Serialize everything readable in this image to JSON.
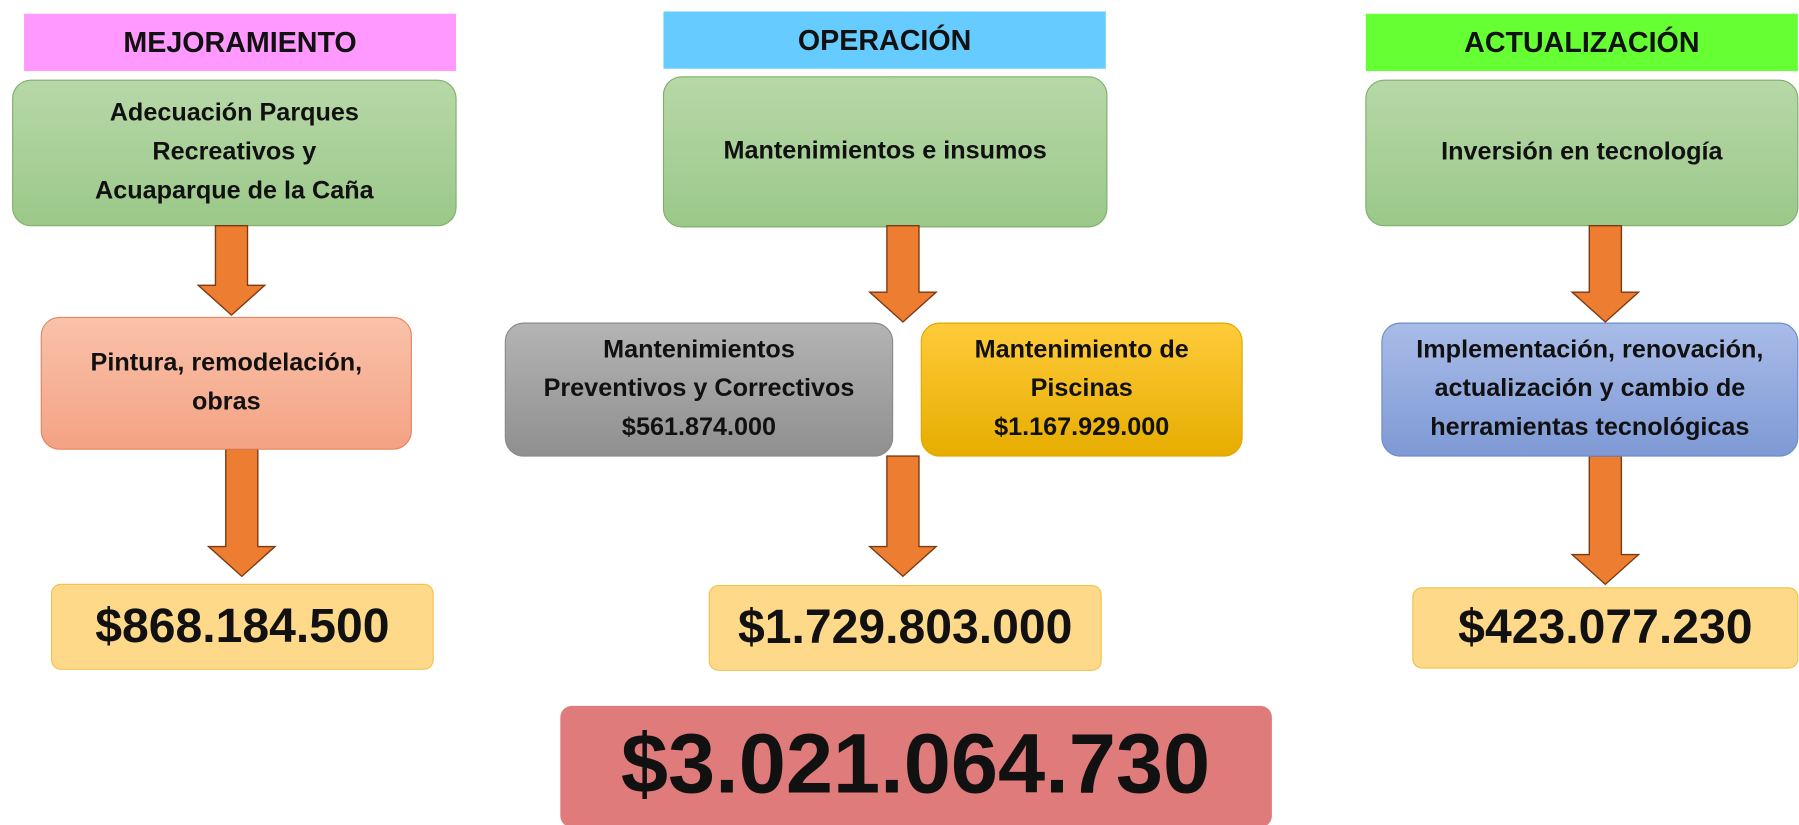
{
  "columns": [
    {
      "header": "MEJORAMIENTO",
      "item": [
        "Adecuación Parques",
        "Recreativos y",
        "Acuaparque de la Caña"
      ],
      "details": [
        {
          "lines": [
            "Pintura, remodelación,",
            "obras"
          ]
        }
      ],
      "total": "$868.184.500"
    },
    {
      "header": "OPERACIÓN",
      "item": [
        "Mantenimientos e insumos"
      ],
      "details": [
        {
          "lines": [
            "Mantenimientos",
            "Preventivos y Correctivos",
            "$561.874.000"
          ]
        },
        {
          "lines": [
            "Mantenimiento de",
            "Piscinas",
            "$1.167.929.000"
          ]
        }
      ],
      "total": "$1.729.803.000"
    },
    {
      "header": "ACTUALIZACIÓN",
      "item": [
        "Inversión en tecnología"
      ],
      "details": [
        {
          "lines": [
            "Implementación, renovación,",
            "actualización y cambio de",
            "herramientas tecnológicas"
          ]
        }
      ],
      "total": "$423.077.230"
    }
  ],
  "grand_total": "$3.021.064.730"
}
